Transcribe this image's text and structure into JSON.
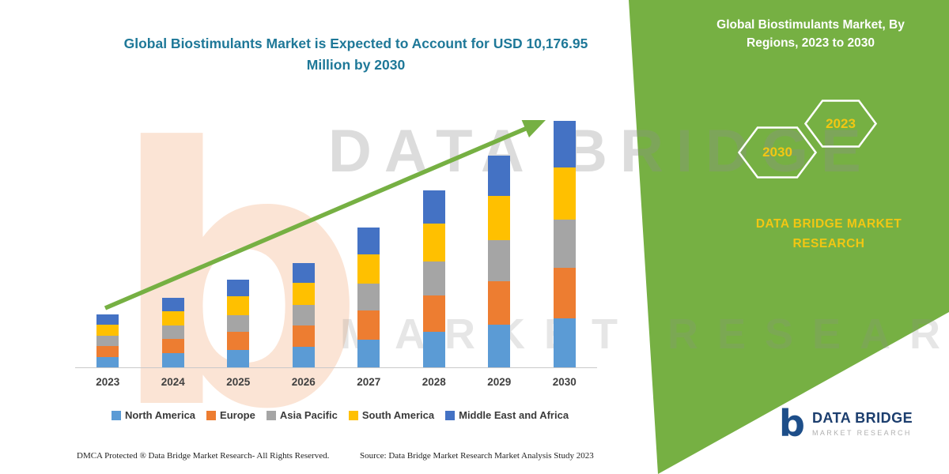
{
  "colors": {
    "green": "#76b043",
    "gold": "#f2c713",
    "teal": "#1e7898",
    "orange": "#ed7d31",
    "navy": "#1c3e6e"
  },
  "header": {
    "title_line1": "Global Biostimulants Market is Expected to Account for USD 10,176.95",
    "title_line2": "Million by 2030"
  },
  "side_panel": {
    "heading_line1": "Global Biostimulants Market, By",
    "heading_line2": "Regions, 2023 to 2030",
    "hexagons": [
      {
        "label": "2030"
      },
      {
        "label": "2023"
      }
    ],
    "brand_line1": "DATA BRIDGE MARKET",
    "brand_line2": "RESEARCH"
  },
  "watermark": {
    "letter": "b",
    "text_top": "DATA BRIDGE",
    "text_bottom": "MARKET RESEARCH"
  },
  "chart_data": {
    "type": "bar",
    "stacked": true,
    "title": "Global Biostimulants Market is Expected to Account for USD 10,176.95 Million by 2030",
    "unit": "USD Million",
    "categories": [
      "2023",
      "2024",
      "2025",
      "2026",
      "2027",
      "2028",
      "2029",
      "2030"
    ],
    "series": [
      {
        "name": "North America",
        "color": "#5b9bd5",
        "values": [
          440,
          575,
          725,
          860,
          1155,
          1460,
          1750,
          2035
        ]
      },
      {
        "name": "Europe",
        "color": "#ed7d31",
        "values": [
          450,
          590,
          740,
          880,
          1185,
          1500,
          1790,
          2090
        ]
      },
      {
        "name": "Asia Pacific",
        "color": "#a5a5a5",
        "values": [
          430,
          560,
          705,
          840,
          1125,
          1425,
          1705,
          1985
        ]
      },
      {
        "name": "South America",
        "color": "#ffc000",
        "values": [
          450,
          600,
          760,
          905,
          1210,
          1535,
          1835,
          2140
        ]
      },
      {
        "name": "Middle East and Africa",
        "color": "#4472c4",
        "values": [
          415,
          545,
          690,
          820,
          1095,
          1380,
          1655,
          1926.95
        ]
      }
    ],
    "ylim": [
      0,
      10500
    ],
    "grid": false,
    "legend_position": "bottom",
    "annotations": {
      "trend_arrow": "upward",
      "total_2030": 10176.95
    }
  },
  "footer": {
    "dmca": "DMCA Protected ® Data Bridge Market Research-  All Rights Reserved.",
    "source": "Source: Data Bridge Market Research  Market Analysis Study 2023"
  },
  "logo": {
    "mark": "b",
    "name": "DATA BRIDGE",
    "tagline": "MARKET RESEARCH"
  }
}
